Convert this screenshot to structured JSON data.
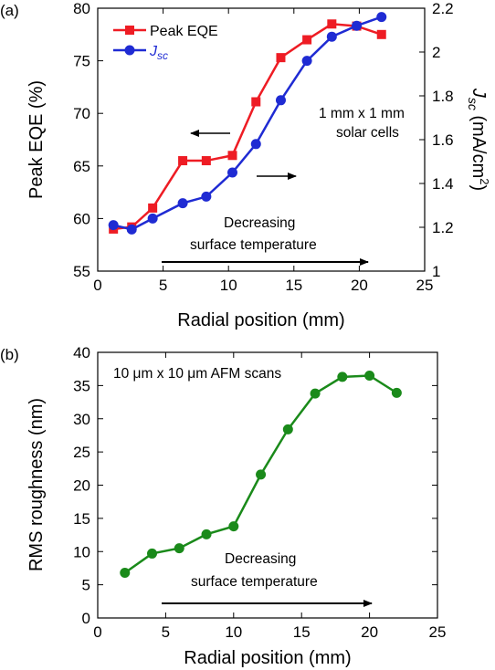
{
  "chart_data": [
    {
      "panel_label": "(a)",
      "type": "line",
      "x": [
        1.2,
        2.6,
        4.2,
        6.5,
        8.3,
        10.3,
        12.1,
        14.0,
        16.0,
        17.9,
        19.8,
        21.7
      ],
      "xlabel": "Radial position (mm)",
      "xlim": [
        0,
        25
      ],
      "xticks": [
        0,
        5,
        10,
        15,
        20,
        25
      ],
      "ylabel": "Peak EQE (%)",
      "ylim": [
        55,
        80
      ],
      "yticks": [
        55,
        60,
        65,
        70,
        75,
        80
      ],
      "y2label_main": "J",
      "y2label_sub": "sc",
      "y2label_units_pre": " (mA/cm",
      "y2label_units_sup": "2",
      "y2label_units_post": ")",
      "y2lim": [
        1.0,
        2.2
      ],
      "y2ticks": [
        "1",
        "1.2",
        "1.4",
        "1.6",
        "1.8",
        "2",
        "2.2"
      ],
      "y2tick_values": [
        1.0,
        1.2,
        1.4,
        1.6,
        1.8,
        2.0,
        2.2
      ],
      "series": [
        {
          "name": "Peak EQE",
          "axis": "left",
          "color": "#ee1c24",
          "marker": "square",
          "values": [
            59.0,
            59.2,
            61.0,
            65.5,
            65.5,
            66.0,
            71.1,
            75.3,
            77.0,
            78.5,
            78.3,
            77.5
          ]
        },
        {
          "name_main": "J",
          "name_sub": "sc",
          "axis": "right",
          "color": "#1f2bd3",
          "marker": "circle",
          "values": [
            1.21,
            1.19,
            1.24,
            1.31,
            1.34,
            1.45,
            1.58,
            1.78,
            1.96,
            2.07,
            2.12,
            2.16
          ]
        }
      ],
      "legend_position": "top-left",
      "annotations": {
        "cells_line1": "1 mm x 1 mm",
        "cells_line2": "solar cells",
        "trend_line1": "Decreasing",
        "trend_line2": "surface temperature"
      }
    },
    {
      "panel_label": "(b)",
      "type": "line",
      "x": [
        2,
        4,
        6,
        8,
        10,
        12,
        14,
        16,
        18,
        20,
        22
      ],
      "xlabel": "Radial position (mm)",
      "xlim": [
        0,
        25
      ],
      "xticks": [
        0,
        5,
        10,
        15,
        20,
        25
      ],
      "ylabel": "RMS roughness (nm)",
      "ylim": [
        0,
        40
      ],
      "yticks": [
        0,
        5,
        10,
        15,
        20,
        25,
        30,
        35,
        40
      ],
      "series": [
        {
          "color": "#1a8a1a",
          "marker": "circle",
          "values": [
            6.8,
            9.7,
            10.5,
            12.6,
            13.8,
            21.6,
            28.4,
            33.8,
            36.3,
            36.5,
            33.9
          ]
        }
      ],
      "annotations": {
        "scan_note": "10 μm x 10 μm AFM scans",
        "trend_line1": "Decreasing",
        "trend_line2": "surface temperature"
      }
    }
  ]
}
